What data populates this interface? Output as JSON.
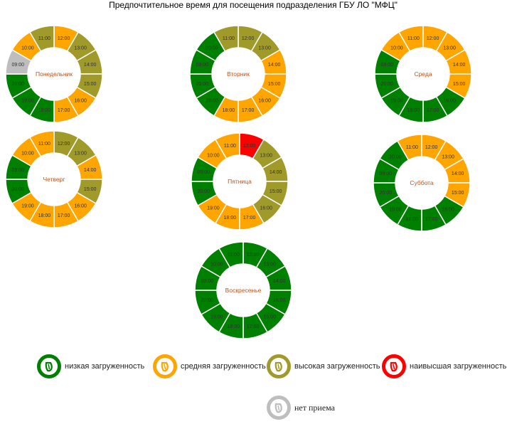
{
  "title": "Предпочтительное время для посещения подразделения ГБУ ЛО \"МФЦ\"",
  "colors": {
    "low": "#008000",
    "medium": "#FFA500",
    "high": "#A09A2A",
    "highest": "#FF0000",
    "closed": "#BEBEBE",
    "day_label": "#C0541A"
  },
  "legend": [
    {
      "key": "low",
      "label": "низкая загруженность",
      "icon": "mfc-logo-icon"
    },
    {
      "key": "medium",
      "label": "средняя загруженность",
      "icon": "mfc-logo-icon"
    },
    {
      "key": "high",
      "label": "высокая загруженность",
      "icon": "mfc-logo-icon"
    },
    {
      "key": "highest",
      "label": "наивысшая загруженность",
      "icon": "mfc-logo-icon"
    },
    {
      "key": "closed",
      "label": "нет приема",
      "icon": "mfc-logo-icon"
    }
  ],
  "chart_data": [
    {
      "type": "pie",
      "name": "Понедельник",
      "categories": [
        "12:00",
        "13:00",
        "14:00",
        "15:00",
        "16:00",
        "17:00",
        "18:00",
        "19:00",
        "20:00",
        "09:00",
        "10:00",
        "11:00"
      ],
      "levels": [
        "medium",
        "high",
        "high",
        "high",
        "medium",
        "medium",
        "low",
        "low",
        "low",
        "closed",
        "medium",
        "high"
      ]
    },
    {
      "type": "pie",
      "name": "Вторник",
      "categories": [
        "12:00",
        "13:00",
        "14:00",
        "15:00",
        "16:00",
        "17:00",
        "18:00",
        "19:00",
        "20:00",
        "09:00",
        "10:00",
        "11:00"
      ],
      "levels": [
        "high",
        "high",
        "medium",
        "medium",
        "medium",
        "medium",
        "medium",
        "low",
        "low",
        "low",
        "low",
        "high"
      ]
    },
    {
      "type": "pie",
      "name": "Среда",
      "categories": [
        "12:00",
        "13:00",
        "14:00",
        "15:00",
        "16:00",
        "17:00",
        "18:00",
        "19:00",
        "20:00",
        "09:00",
        "10:00",
        "11:00"
      ],
      "levels": [
        "medium",
        "medium",
        "medium",
        "medium",
        "low",
        "low",
        "low",
        "low",
        "low",
        "low",
        "medium",
        "medium"
      ]
    },
    {
      "type": "pie",
      "name": "Четверг",
      "categories": [
        "12:00",
        "13:00",
        "14:00",
        "15:00",
        "16:00",
        "17:00",
        "18:00",
        "19:00",
        "20:00",
        "09:00",
        "10:00",
        "11:00"
      ],
      "levels": [
        "high",
        "high",
        "medium",
        "high",
        "medium",
        "medium",
        "medium",
        "medium",
        "low",
        "low",
        "medium",
        "medium"
      ]
    },
    {
      "type": "pie",
      "name": "Пятница",
      "categories": [
        "12:00",
        "13:00",
        "14:00",
        "15:00",
        "16:00",
        "17:00",
        "18:00",
        "19:00",
        "20:00",
        "09:00",
        "10:00",
        "11:00"
      ],
      "levels": [
        "highest",
        "high",
        "high",
        "high",
        "high",
        "medium",
        "medium",
        "medium",
        "low",
        "low",
        "medium",
        "medium"
      ]
    },
    {
      "type": "pie",
      "name": "Суббота",
      "categories": [
        "12:00",
        "13:00",
        "14:00",
        "15:00",
        "16:00",
        "17:00",
        "18:00",
        "19:00",
        "20:00",
        "09:00",
        "10:00",
        "11:00"
      ],
      "levels": [
        "medium",
        "medium",
        "medium",
        "medium",
        "low",
        "low",
        "low",
        "low",
        "low",
        "low",
        "low",
        "medium"
      ]
    },
    {
      "type": "pie",
      "name": "Воскресенье",
      "categories": [
        "12:00",
        "13:00",
        "14:00",
        "15:00",
        "16:00",
        "17:00",
        "18:00",
        "19:00",
        "20:00",
        "09:00",
        "10:00",
        "11:00"
      ],
      "levels": [
        "low",
        "low",
        "low",
        "low",
        "low",
        "low",
        "low",
        "low",
        "low",
        "low",
        "low",
        "low"
      ]
    }
  ]
}
